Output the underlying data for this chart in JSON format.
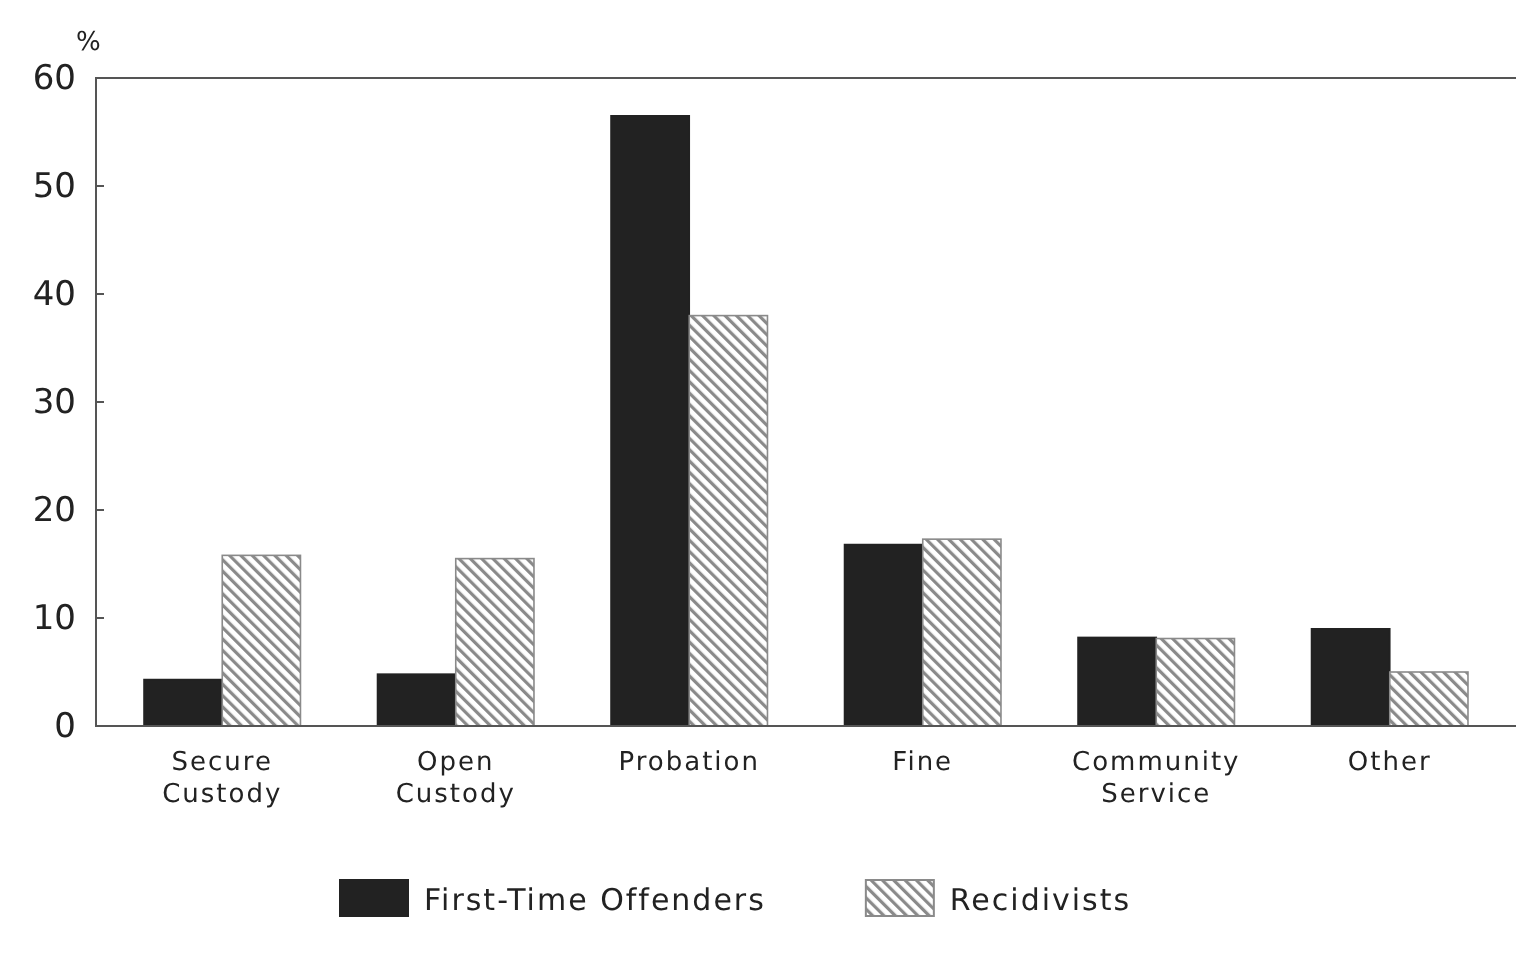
{
  "chart_data": {
    "type": "bar",
    "ylabel": "%",
    "categories": [
      "Secure Custody",
      "Open Custody",
      "Probation",
      "Fine",
      "Community Service",
      "Other"
    ],
    "series": [
      {
        "name": "First-Time Offenders",
        "color": "#222222",
        "values": [
          4.3,
          4.8,
          56.5,
          16.8,
          8.2,
          9.0
        ]
      },
      {
        "name": "Recidivists",
        "color": "#8a8a8a",
        "values": [
          15.8,
          15.5,
          38.0,
          17.3,
          8.1,
          5.0
        ]
      }
    ],
    "ylim": [
      0,
      60
    ],
    "yticks": [
      0,
      10,
      20,
      30,
      40,
      50,
      60
    ],
    "grid": false,
    "legend": "bottom"
  }
}
